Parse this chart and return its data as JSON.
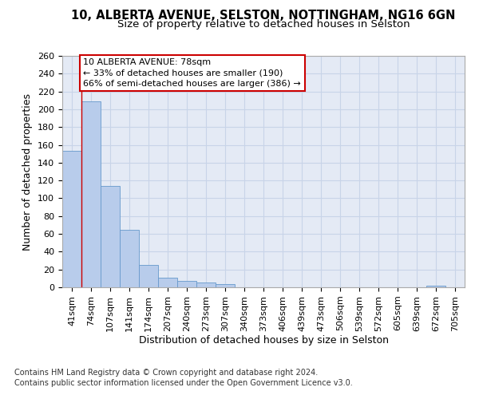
{
  "title_line1": "10, ALBERTA AVENUE, SELSTON, NOTTINGHAM, NG16 6GN",
  "title_line2": "Size of property relative to detached houses in Selston",
  "xlabel": "Distribution of detached houses by size in Selston",
  "ylabel": "Number of detached properties",
  "categories": [
    "41sqm",
    "74sqm",
    "107sqm",
    "141sqm",
    "174sqm",
    "207sqm",
    "240sqm",
    "273sqm",
    "307sqm",
    "340sqm",
    "373sqm",
    "406sqm",
    "439sqm",
    "473sqm",
    "506sqm",
    "539sqm",
    "572sqm",
    "605sqm",
    "639sqm",
    "672sqm",
    "705sqm"
  ],
  "values": [
    153,
    209,
    114,
    65,
    25,
    11,
    7,
    5,
    4,
    0,
    0,
    0,
    0,
    0,
    0,
    0,
    0,
    0,
    0,
    2,
    0
  ],
  "bar_color": "#b8cceb",
  "bar_edge_color": "#6699cc",
  "property_line_x": 0.5,
  "property_line_color": "#cc0000",
  "annotation_text": "10 ALBERTA AVENUE: 78sqm\n← 33% of detached houses are smaller (190)\n66% of semi-detached houses are larger (386) →",
  "annotation_box_color": "#ffffff",
  "annotation_box_edge": "#cc0000",
  "ylim": [
    0,
    260
  ],
  "yticks": [
    0,
    20,
    40,
    60,
    80,
    100,
    120,
    140,
    160,
    180,
    200,
    220,
    240,
    260
  ],
  "grid_color": "#c8d4e8",
  "bg_color": "#e4eaf5",
  "footer_line1": "Contains HM Land Registry data © Crown copyright and database right 2024.",
  "footer_line2": "Contains public sector information licensed under the Open Government Licence v3.0.",
  "title_fontsize": 10.5,
  "subtitle_fontsize": 9.5,
  "axis_label_fontsize": 9,
  "tick_fontsize": 8,
  "annot_fontsize": 8,
  "footer_fontsize": 7
}
